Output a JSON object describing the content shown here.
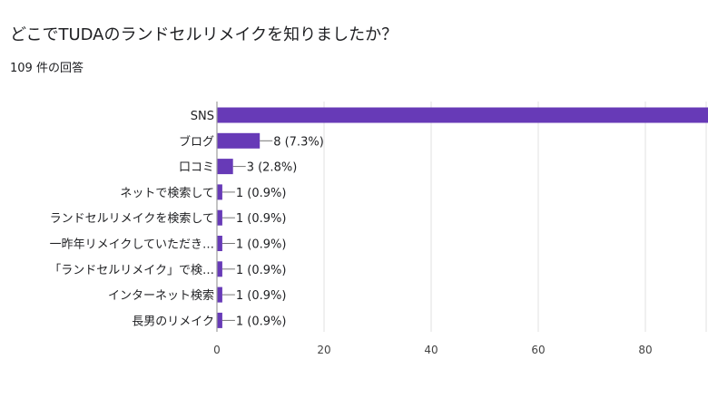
{
  "question_title": "どこでTUDAのランドセルリメイクを知りましたか？",
  "response_count": "109 件の回答",
  "colors": {
    "bar": "#673ab7",
    "grid": "#e0e0e0",
    "axis": "#9e9e9e",
    "text": "#202124",
    "tick": "#444444"
  },
  "chart_data": {
    "type": "bar",
    "orientation": "horizontal",
    "title": "どこでTUDAのランドセルリメイクを知りましたか？",
    "subtitle": "109 件の回答",
    "categories": [
      "SNS",
      "ブログ",
      "口コミ",
      "ネットで検索して",
      "ランドセルリメイクを検索して",
      "一昨年リメイクしていただき…",
      "「ランドセルリメイク」で検…",
      "インターネット検索",
      "長男のリメイク"
    ],
    "values": [
      92,
      8,
      3,
      1,
      1,
      1,
      1,
      1,
      1
    ],
    "value_labels": [
      "",
      "8 (7.3%)",
      "3 (2.8%)",
      "1 (0.9%)",
      "1 (0.9%)",
      "1 (0.9%)",
      "1 (0.9%)",
      "1 (0.9%)",
      "1 (0.9%)"
    ],
    "xticks": [
      0,
      20,
      40,
      60,
      80
    ],
    "xlim": [
      0,
      91
    ],
    "grid": true,
    "xlabel": "",
    "ylabel": ""
  }
}
